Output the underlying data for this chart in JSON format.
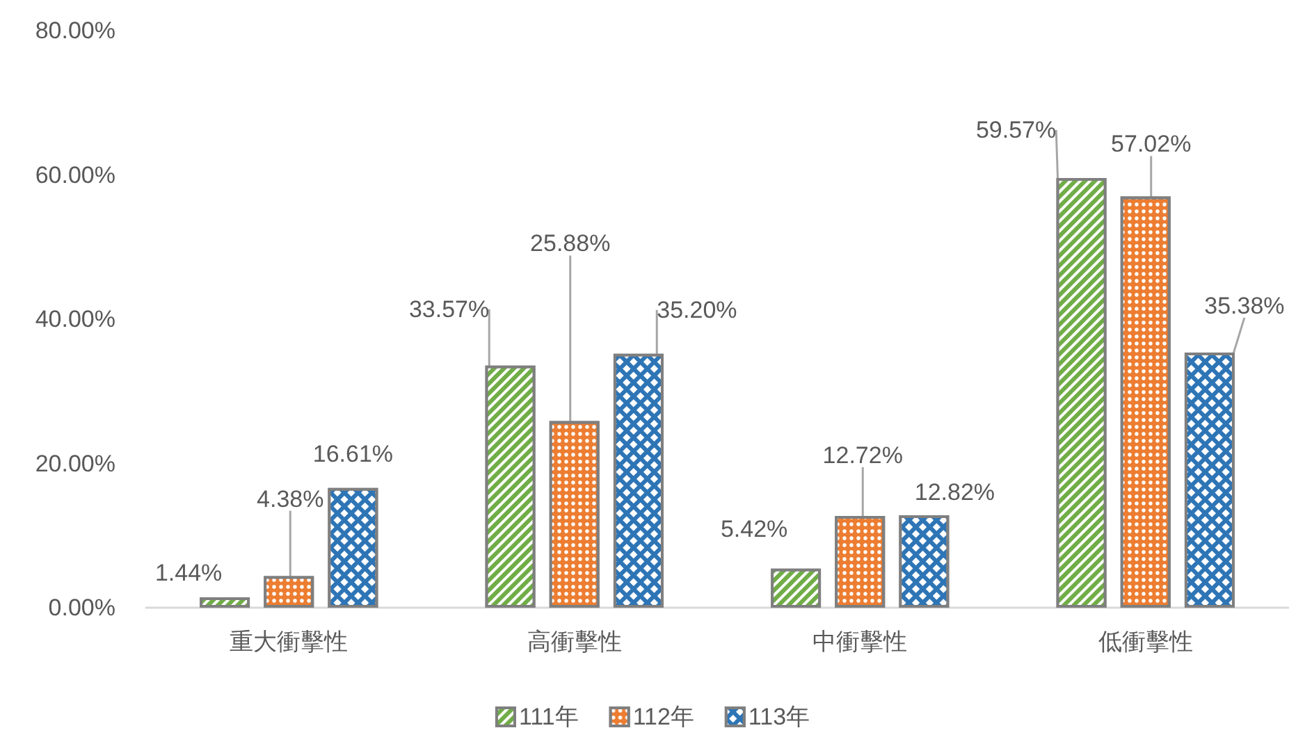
{
  "chart_data": {
    "type": "bar",
    "categories": [
      "重大衝擊性",
      "高衝擊性",
      "中衝擊性",
      "低衝擊性"
    ],
    "series": [
      {
        "name": "111年",
        "color": "#70ad47",
        "values": [
          1.44,
          33.57,
          5.42,
          59.57
        ],
        "value_labels": [
          "1.44%",
          "33.57%",
          "5.42%",
          "59.57%"
        ]
      },
      {
        "name": "112年",
        "color": "#ed7d31",
        "values": [
          4.38,
          25.88,
          12.72,
          57.02
        ],
        "value_labels": [
          "4.38%",
          "25.88%",
          "12.72%",
          "57.02%"
        ]
      },
      {
        "name": "113年",
        "color": "#2e75b6",
        "values": [
          16.61,
          35.2,
          12.82,
          35.38
        ],
        "value_labels": [
          "16.61%",
          "35.20%",
          "12.82%",
          "35.38%"
        ]
      }
    ],
    "ylim": [
      0,
      80
    ],
    "yticks": [
      {
        "value": 0,
        "label": "0.00%"
      },
      {
        "value": 20,
        "label": "20.00%"
      },
      {
        "value": 40,
        "label": "40.00%"
      },
      {
        "value": 60,
        "label": "60.00%"
      },
      {
        "value": 80,
        "label": "80.00%"
      }
    ],
    "grid": false,
    "legend": "bottom"
  }
}
